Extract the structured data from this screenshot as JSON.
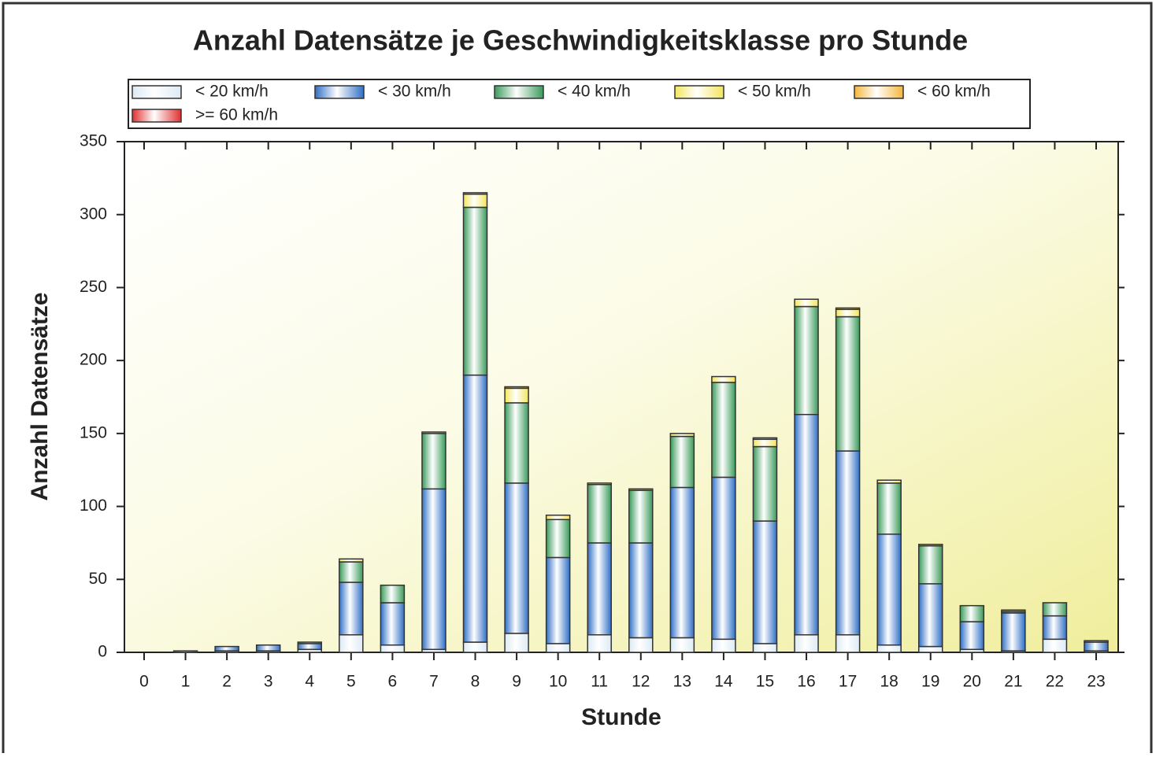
{
  "chart_data": {
    "type": "stacked_bar",
    "title": "Anzahl Datensätze je Geschwindigkeitsklasse pro Stunde",
    "x_label": "Stunde",
    "y_label": "Anzahl Datensätze",
    "categories": [
      "0",
      "1",
      "2",
      "3",
      "4",
      "5",
      "6",
      "7",
      "8",
      "9",
      "10",
      "11",
      "12",
      "13",
      "14",
      "15",
      "16",
      "17",
      "18",
      "19",
      "20",
      "21",
      "22",
      "23"
    ],
    "series": [
      {
        "name": "< 20 km/h",
        "color": "#dceaf4",
        "values": [
          0,
          0,
          1,
          1,
          2,
          12,
          5,
          2,
          7,
          13,
          6,
          12,
          10,
          10,
          9,
          6,
          12,
          12,
          5,
          4,
          2,
          1,
          9,
          1
        ]
      },
      {
        "name": "< 30 km/h",
        "color": "#2f6fc6",
        "values": [
          0,
          1,
          3,
          4,
          4,
          36,
          29,
          110,
          183,
          103,
          59,
          63,
          65,
          103,
          111,
          84,
          151,
          126,
          76,
          43,
          19,
          26,
          16,
          6
        ]
      },
      {
        "name": "< 40 km/h",
        "color": "#3a9a5a",
        "values": [
          0,
          0,
          0,
          0,
          1,
          14,
          12,
          38,
          115,
          55,
          26,
          40,
          36,
          35,
          65,
          51,
          74,
          92,
          35,
          26,
          11,
          1,
          9,
          1
        ]
      },
      {
        "name": "< 50 km/h",
        "color": "#f3e65a",
        "values": [
          0,
          0,
          0,
          0,
          0,
          2,
          0,
          1,
          9,
          10,
          3,
          1,
          1,
          2,
          4,
          5,
          5,
          5,
          2,
          1,
          0,
          1,
          0,
          0
        ]
      },
      {
        "name": "< 60 km/h",
        "color": "#f5b63a",
        "values": [
          0,
          0,
          0,
          0,
          0,
          0,
          0,
          0,
          1,
          1,
          0,
          0,
          0,
          0,
          0,
          1,
          0,
          1,
          0,
          0,
          0,
          0,
          0,
          0
        ]
      },
      {
        "name": ">= 60 km/h",
        "color": "#e03030",
        "values": [
          0,
          0,
          0,
          0,
          0,
          0,
          0,
          0,
          0,
          0,
          0,
          0,
          0,
          0,
          0,
          0,
          0,
          0,
          0,
          0,
          0,
          0,
          0,
          0
        ]
      }
    ],
    "ylim": [
      0,
      350
    ],
    "yticks": [
      0,
      50,
      100,
      150,
      200,
      250,
      300,
      350
    ]
  }
}
